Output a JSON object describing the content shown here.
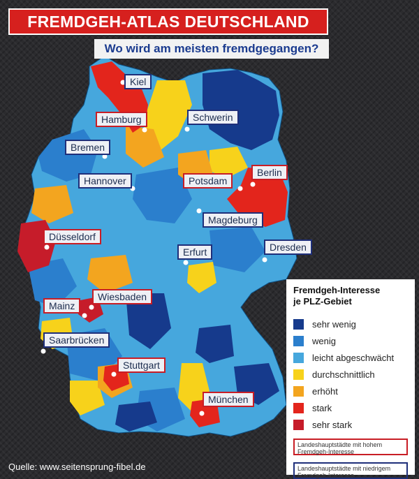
{
  "title": "FREMDGEH-ATLAS DEUTSCHLAND",
  "subtitle": "Wo wird am meisten fremdgegangen?",
  "colors": {
    "sehr_wenig": "#163a8c",
    "wenig": "#2b7fcd",
    "leicht": "#46a7dd",
    "durchschnittlich": "#f7d21b",
    "erhoeht": "#f3a51f",
    "stark": "#e3251c",
    "sehr_stark": "#c61c2a",
    "high_border": "#c81d25",
    "low_border": "#1f2f7a"
  },
  "cities": [
    {
      "name": "Kiel",
      "type": "low"
    },
    {
      "name": "Hamburg",
      "type": "high"
    },
    {
      "name": "Schwerin",
      "type": "low"
    },
    {
      "name": "Bremen",
      "type": "low"
    },
    {
      "name": "Berlin",
      "type": "high"
    },
    {
      "name": "Hannover",
      "type": "low"
    },
    {
      "name": "Potsdam",
      "type": "high"
    },
    {
      "name": "Magdeburg",
      "type": "low"
    },
    {
      "name": "Düsseldorf",
      "type": "high"
    },
    {
      "name": "Erfurt",
      "type": "low"
    },
    {
      "name": "Dresden",
      "type": "low"
    },
    {
      "name": "Wiesbaden",
      "type": "high"
    },
    {
      "name": "Mainz",
      "type": "high"
    },
    {
      "name": "Saarbrücken",
      "type": "low"
    },
    {
      "name": "Stuttgart",
      "type": "high"
    },
    {
      "name": "München",
      "type": "high"
    }
  ],
  "legend": {
    "title_line1": "Fremdgeh-Interesse",
    "title_line2": "je PLZ-Gebiet",
    "items": [
      {
        "label": "sehr wenig",
        "color": "#163a8c"
      },
      {
        "label": "wenig",
        "color": "#2b7fcd"
      },
      {
        "label": "leicht abgeschwächt",
        "color": "#46a7dd"
      },
      {
        "label": "durchschnittlich",
        "color": "#f7d21b"
      },
      {
        "label": "erhöht",
        "color": "#f3a51f"
      },
      {
        "label": "stark",
        "color": "#e3251c"
      },
      {
        "label": "sehr stark",
        "color": "#c61c2a"
      }
    ],
    "note_high": "Landeshauptstädte mit hohem Fremdgeh-Interesse",
    "note_low": "Landeshauptstädte mit niedrigem Fremdgeh-Interesse"
  },
  "source": "Quelle: www.seitensprung-fibel.de"
}
